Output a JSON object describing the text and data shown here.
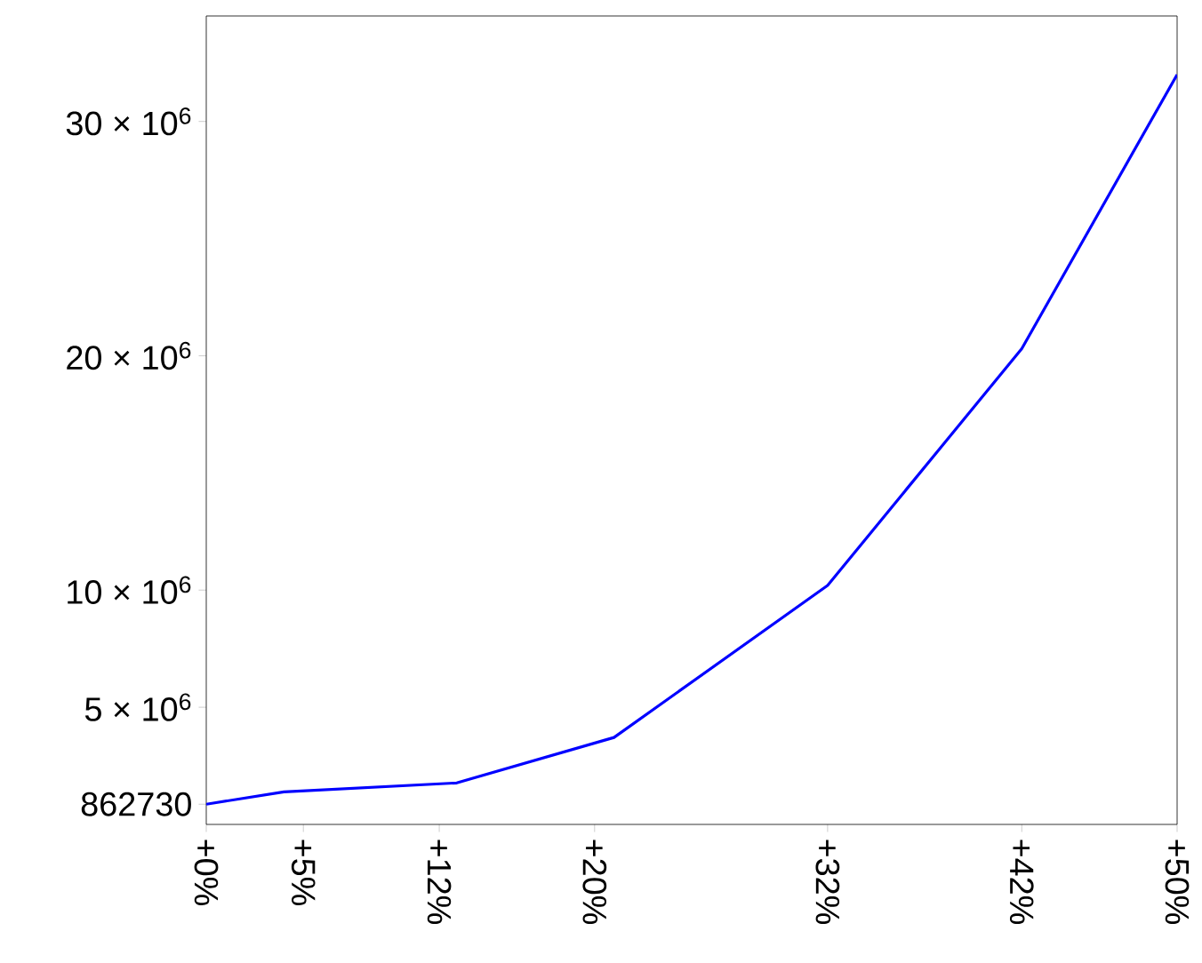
{
  "chart_data": {
    "type": "line",
    "x": [
      0,
      4,
      12.9,
      21,
      32,
      42,
      50
    ],
    "series": [
      {
        "color": "#0000ff",
        "values": [
          862730,
          1390000,
          1770000,
          3710000,
          10200000,
          20300000,
          32000000
        ]
      }
    ],
    "xlim": [
      0,
      50
    ],
    "xticks": [
      {
        "value": 0,
        "label": "+0%"
      },
      {
        "value": 5,
        "label": "+5%"
      },
      {
        "value": 12,
        "label": "+12%"
      },
      {
        "value": 20,
        "label": "+20%"
      },
      {
        "value": 32,
        "label": "+32%"
      },
      {
        "value": 42,
        "label": "+42%"
      },
      {
        "value": 50,
        "label": "+50%"
      }
    ],
    "ylim": [
      0,
      34500000
    ],
    "yticks": [
      862730,
      {
        "value": 5000000,
        "label": "5 × 10$^{6}$"
      },
      {
        "value": 10000000,
        "label": "10 × 10$^{6}$"
      },
      {
        "value": 20000000,
        "label": "20 × 10$^{6}$"
      },
      {
        "value": 30000000,
        "label": "30 × 10$^{6}$"
      }
    ],
    "grid": false,
    "marker": "none",
    "line_style": "solid"
  }
}
